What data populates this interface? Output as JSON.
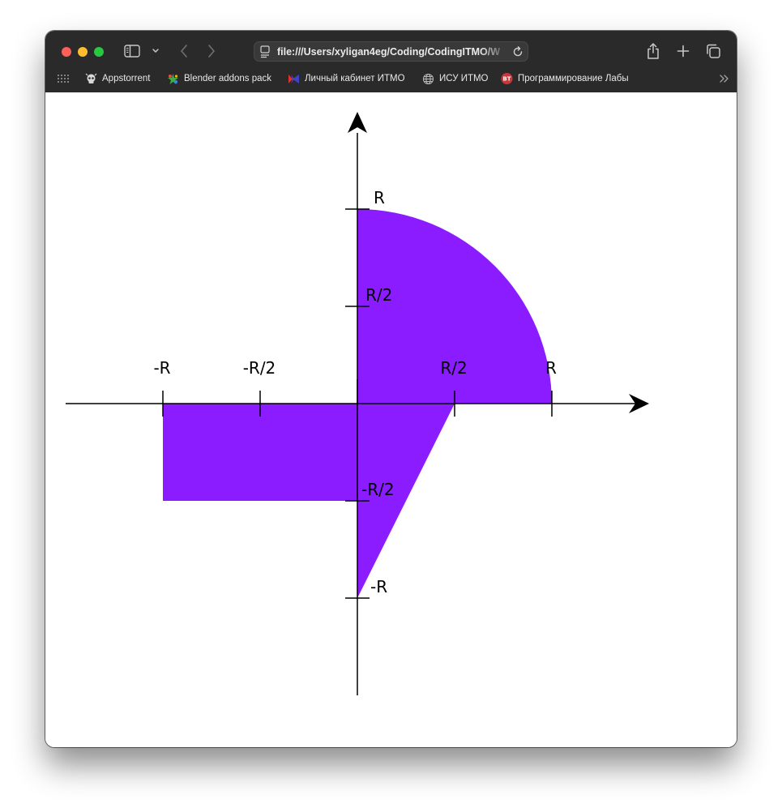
{
  "window": {
    "url": "file:///Users/xyligan4eg/Coding/CodingITMO/W"
  },
  "bookmarks": [
    {
      "label": "Appstorrent",
      "icon": "skull-icon"
    },
    {
      "label": "Blender addons pack",
      "icon": "blender-star-icon"
    },
    {
      "label": "Личный кабинет ИТМО",
      "icon": "itmo-logo-icon"
    },
    {
      "label": "ИСУ ИТМО",
      "icon": "globe-icon"
    },
    {
      "label": "Программирование Лабы",
      "icon": "bt-badge-icon",
      "badge": "BT"
    }
  ],
  "graph": {
    "area_color": "#8b1cff",
    "labels": {
      "x_neg_r": "-R",
      "x_neg_half_r": "-R/2",
      "x_half_r": "R/2",
      "x_r": "R",
      "y_r": "R",
      "y_half_r": "R/2",
      "y_neg_half_r": "-R/2",
      "y_neg_r": "-R"
    }
  }
}
